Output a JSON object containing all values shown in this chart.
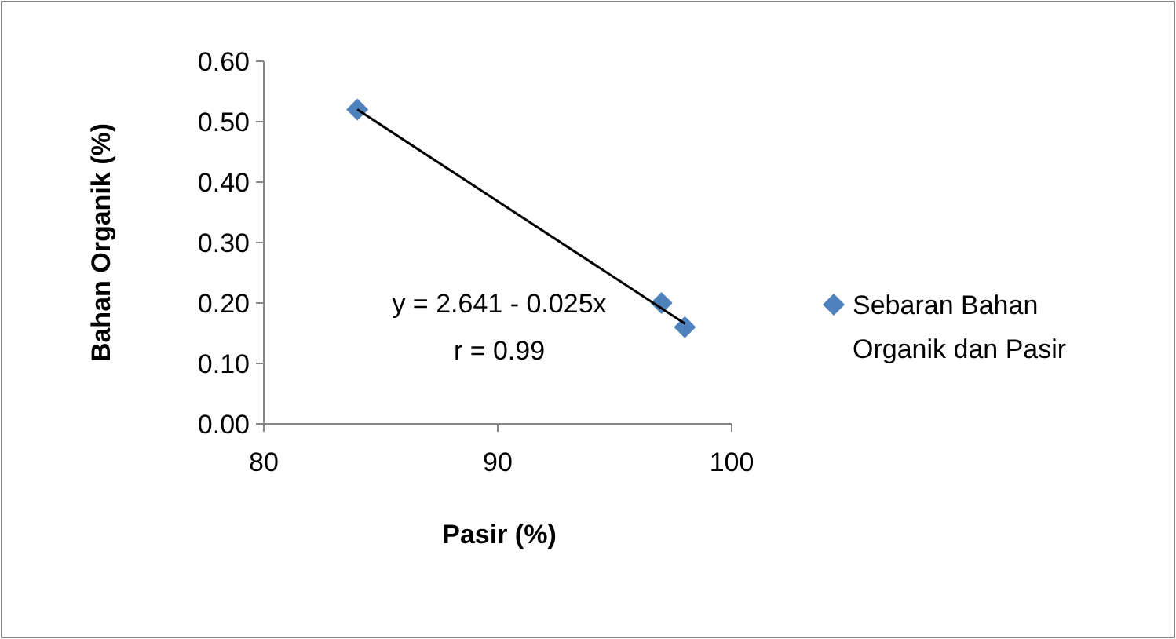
{
  "chart_data": {
    "type": "scatter",
    "xlabel": "Pasir (%)",
    "ylabel": "Bahan Organik (%)",
    "xlim": [
      80,
      100
    ],
    "xticks": [
      80,
      90,
      100
    ],
    "ylim": [
      0,
      0.6
    ],
    "yticks": [
      {
        "value": 0,
        "label": "0.00"
      },
      {
        "value": 0.1,
        "label": "0.10"
      },
      {
        "value": 0.2,
        "label": "0.20"
      },
      {
        "value": 0.3,
        "label": "0.30"
      },
      {
        "value": 0.4,
        "label": "0.40"
      },
      {
        "value": 0.5,
        "label": "0.50"
      },
      {
        "value": 0.6,
        "label": "0.60"
      }
    ],
    "series": [
      {
        "name": "Sebaran Bahan Organik dan Pasir",
        "color": "#4f81bd",
        "marker": "diamond",
        "x": [
          84,
          97,
          98
        ],
        "values": [
          0.52,
          0.2,
          0.16
        ]
      },
      {
        "type": "line",
        "color": "#000000",
        "marker": "none",
        "x": [
          84,
          98
        ],
        "values": [
          0.52,
          0.166
        ]
      }
    ],
    "annotations": [
      "y = 2.641 - 0.025x",
      "r = 0.99"
    ],
    "legend": "right",
    "grid": false
  }
}
